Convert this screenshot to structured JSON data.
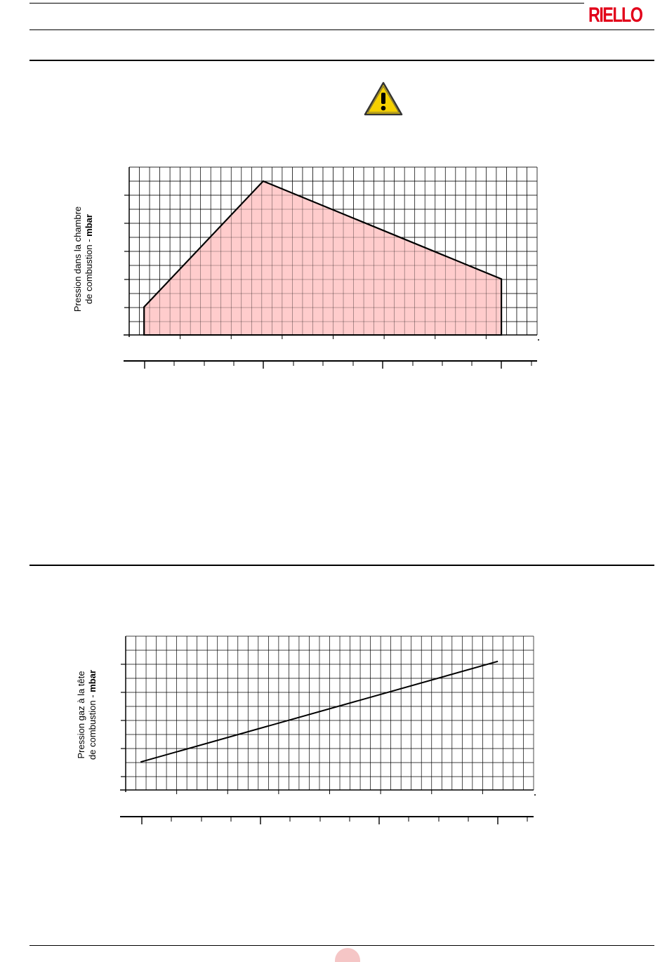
{
  "header": {
    "brand": "RIELLO",
    "brand_color": "#e2001a"
  },
  "warning_icon": {
    "name": "warning-triangle-icon",
    "fill": "#f5d000"
  },
  "charts": [
    {
      "ylabel_line1": "Pression dans la chambre",
      "ylabel_line2": "de combustion - ",
      "ylabel_unit": "mbar"
    },
    {
      "ylabel_line1": "Pression gaz à la tête",
      "ylabel_line2": "de combustion - ",
      "ylabel_unit": "mbar"
    }
  ],
  "chart_data": [
    {
      "type": "area",
      "title": "",
      "fill_color": "#ffcccc",
      "line_color": "#000000",
      "grid": true,
      "x": [
        0,
        0,
        4,
        12,
        12
      ],
      "y": [
        0,
        1,
        5.5,
        2,
        0
      ],
      "xlim": [
        -0.5,
        13.2
      ],
      "ylim": [
        0,
        6
      ]
    },
    {
      "type": "line",
      "title": "",
      "line_color": "#000000",
      "grid": true,
      "x": [
        0,
        12
      ],
      "y": [
        1,
        4.6
      ],
      "xlim": [
        -0.5,
        13.2
      ],
      "ylim": [
        0,
        5.5
      ]
    }
  ]
}
